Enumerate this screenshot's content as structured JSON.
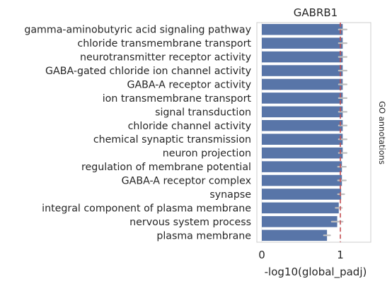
{
  "chart_data": {
    "type": "bar",
    "orientation": "horizontal",
    "title": "GABRB1",
    "xlabel": "-log10(global_padj)",
    "ylabel": "GO annotations",
    "ylabel_position": "right",
    "xlim": [
      0,
      1.4
    ],
    "xticks": [
      0,
      1
    ],
    "xtick_labels": [
      "0",
      "1"
    ],
    "reference_line": {
      "x": 1.0,
      "color": "#c44e52",
      "style": "dashed"
    },
    "bar_color": "#5875a8",
    "errorbar_color": "#bfbfbf",
    "grid": true,
    "categories": [
      "gamma-aminobutyric acid signaling pathway",
      "chloride transmembrane transport",
      "neurotransmitter receptor activity",
      "GABA-gated chloride ion channel activity",
      "GABA-A receptor activity",
      "ion transmembrane transport",
      "signal transduction",
      "chloride channel activity",
      "chemical synaptic transmission",
      "neuron projection",
      "regulation of membrane potential",
      "GABA-A receptor complex",
      "synapse",
      "integral component of plasma membrane",
      "nervous system process",
      "plasma membrane"
    ],
    "values": [
      1.03,
      1.03,
      1.03,
      1.03,
      1.03,
      1.03,
      1.03,
      1.03,
      1.03,
      1.03,
      1.02,
      1.02,
      1.01,
      0.98,
      0.96,
      0.83
    ],
    "errors": [
      0.05,
      0.05,
      0.05,
      0.05,
      0.05,
      0.05,
      0.05,
      0.05,
      0.05,
      0.05,
      0.05,
      0.05,
      0.04,
      0.04,
      0.07,
      0.04
    ]
  }
}
